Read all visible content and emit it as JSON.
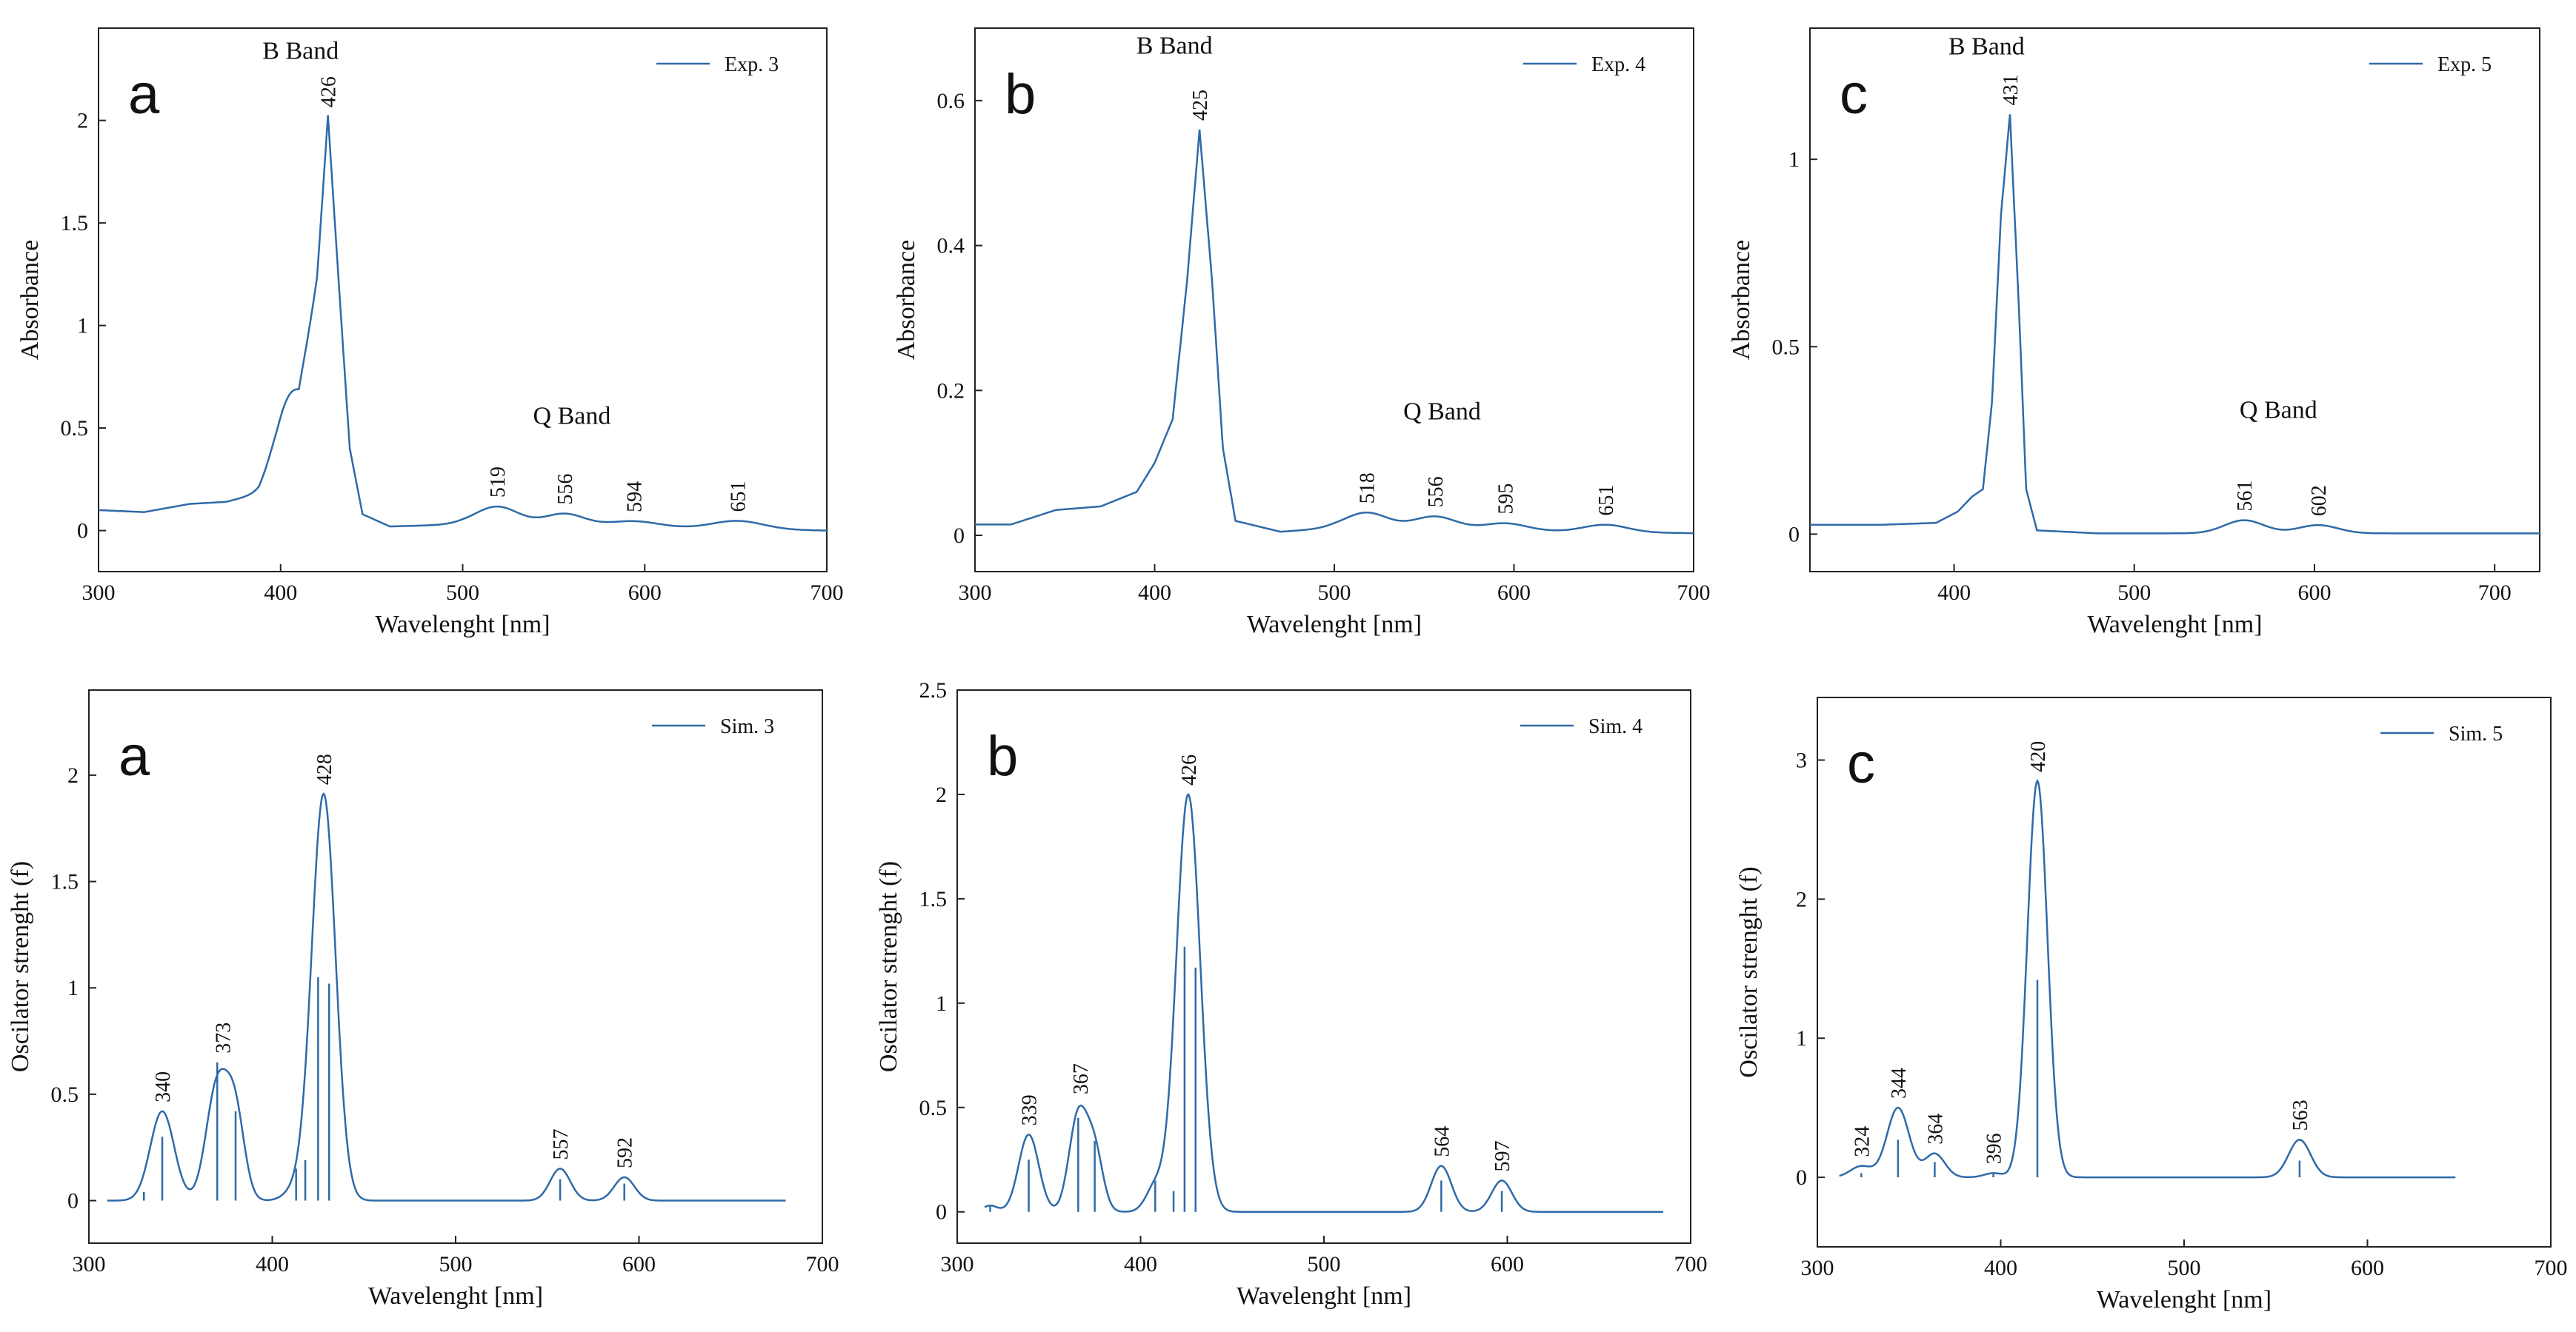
{
  "figure": {
    "series_color": "#2f6aa8"
  },
  "chart_data": [
    {
      "id": "exp3",
      "type": "line",
      "panel_label": "a",
      "xlabel": "Wavelenght [nm]",
      "ylabel": "Absorbance",
      "xlim": [
        300,
        700
      ],
      "ylim": [
        -0.2,
        2.45
      ],
      "xticks": [
        300,
        400,
        500,
        600,
        700
      ],
      "yticks": [
        0,
        0.5,
        1,
        1.5,
        2
      ],
      "legend": "Exp. 3",
      "band_labels": [
        {
          "text": "B Band",
          "x": 411,
          "y": 2.3
        },
        {
          "text": "Q Band",
          "x": 560,
          "y": 0.52
        }
      ],
      "baseline": [
        [
          300,
          0.1
        ],
        [
          325,
          0.09
        ],
        [
          350,
          0.13
        ],
        [
          370,
          0.14
        ],
        [
          388,
          0.18
        ],
        [
          398,
          0.3
        ],
        [
          410,
          0.5
        ],
        [
          420,
          1.2
        ],
        [
          426,
          2.02
        ],
        [
          432,
          1.2
        ],
        [
          438,
          0.4
        ],
        [
          445,
          0.08
        ],
        [
          460,
          0.02
        ],
        [
          500,
          0.03
        ],
        [
          700,
          0.0
        ]
      ],
      "peaks": [
        {
          "x": 404,
          "h": 0.25,
          "w": 8
        },
        {
          "x": 519,
          "h": 0.09,
          "w": 12,
          "label": "519"
        },
        {
          "x": 556,
          "h": 0.06,
          "w": 11,
          "label": "556"
        },
        {
          "x": 594,
          "h": 0.03,
          "w": 14,
          "label": "594"
        },
        {
          "x": 651,
          "h": 0.04,
          "w": 14,
          "label": "651"
        }
      ],
      "peak_labels": [
        {
          "x": 426,
          "y": 2.02,
          "text": "426"
        }
      ],
      "sticks": []
    },
    {
      "id": "exp4",
      "type": "line",
      "panel_label": "b",
      "xlabel": "Wavelenght [nm]",
      "ylabel": "Absorbance",
      "xlim": [
        300,
        700
      ],
      "ylim": [
        -0.05,
        0.7
      ],
      "xticks": [
        300,
        400,
        500,
        600,
        700
      ],
      "yticks": [
        0,
        0.2,
        0.4,
        0.6
      ],
      "legend": "Exp. 4",
      "band_labels": [
        {
          "text": "B Band",
          "x": 411,
          "y": 0.665
        },
        {
          "text": "Q Band",
          "x": 560,
          "y": 0.16
        }
      ],
      "baseline": [
        [
          300,
          0.015
        ],
        [
          320,
          0.015
        ],
        [
          345,
          0.035
        ],
        [
          370,
          0.04
        ],
        [
          390,
          0.06
        ],
        [
          400,
          0.1
        ],
        [
          410,
          0.16
        ],
        [
          418,
          0.35
        ],
        [
          425,
          0.56
        ],
        [
          432,
          0.35
        ],
        [
          438,
          0.12
        ],
        [
          445,
          0.02
        ],
        [
          470,
          0.005
        ],
        [
          500,
          0.01
        ],
        [
          700,
          0.003
        ]
      ],
      "peaks": [
        {
          "x": 518,
          "h": 0.022,
          "w": 12,
          "label": "518"
        },
        {
          "x": 556,
          "h": 0.018,
          "w": 12,
          "label": "556"
        },
        {
          "x": 595,
          "h": 0.01,
          "w": 12,
          "label": "595"
        },
        {
          "x": 651,
          "h": 0.01,
          "w": 12,
          "label": "651"
        }
      ],
      "peak_labels": [
        {
          "x": 425,
          "y": 0.56,
          "text": "425"
        }
      ],
      "sticks": []
    },
    {
      "id": "exp5",
      "type": "line",
      "panel_label": "c",
      "xlabel": "Wavelenght [nm]",
      "ylabel": "Absorbance",
      "xlim": [
        320,
        725
      ],
      "ylim": [
        -0.1,
        1.35
      ],
      "xticks": [
        400,
        500,
        600,
        700
      ],
      "yticks": [
        0,
        0.5,
        1
      ],
      "legend": "Exp. 5",
      "band_labels": [
        {
          "text": "B Band",
          "x": 418,
          "y": 1.28
        },
        {
          "text": "Q Band",
          "x": 580,
          "y": 0.31
        }
      ],
      "baseline": [
        [
          320,
          0.025
        ],
        [
          360,
          0.025
        ],
        [
          390,
          0.03
        ],
        [
          402,
          0.06
        ],
        [
          410,
          0.1
        ],
        [
          416,
          0.12
        ],
        [
          421,
          0.35
        ],
        [
          426,
          0.85
        ],
        [
          431,
          1.12
        ],
        [
          436,
          0.6
        ],
        [
          440,
          0.12
        ],
        [
          446,
          0.01
        ],
        [
          480,
          0.002
        ],
        [
          725,
          0.002
        ]
      ],
      "peaks": [
        {
          "x": 561,
          "h": 0.035,
          "w": 11,
          "label": "561"
        },
        {
          "x": 602,
          "h": 0.022,
          "w": 11,
          "label": "602"
        }
      ],
      "peak_labels": [
        {
          "x": 431,
          "y": 1.12,
          "text": "431"
        }
      ],
      "sticks": []
    },
    {
      "id": "sim3",
      "type": "line",
      "panel_label": "a",
      "xlabel": "Wavelenght [nm]",
      "ylabel": "Oscilator strenght (f)",
      "xlim": [
        300,
        700
      ],
      "ylim": [
        -0.2,
        2.4
      ],
      "xticks": [
        300,
        400,
        500,
        600,
        700
      ],
      "yticks": [
        0,
        0.5,
        1,
        1.5,
        2
      ],
      "legend": "Sim. 3",
      "band_labels": [],
      "baseline": [
        [
          310,
          0.0
        ],
        [
          680,
          0.0
        ]
      ],
      "peaks": [
        {
          "x": 340,
          "h": 0.42,
          "w": 6.5,
          "label": "340"
        },
        {
          "x": 370,
          "h": 0.54,
          "w": 6
        },
        {
          "x": 380,
          "h": 0.38,
          "w": 5
        },
        {
          "x": 373,
          "h": 0.0,
          "w": 5,
          "label": "373",
          "label_y": 0.65
        },
        {
          "x": 413,
          "h": 0.05,
          "w": 6
        },
        {
          "x": 428,
          "h": 1.91,
          "w": 6.5,
          "label": "428"
        },
        {
          "x": 557,
          "h": 0.15,
          "w": 5.5,
          "label": "557"
        },
        {
          "x": 592,
          "h": 0.11,
          "w": 5.5,
          "label": "592"
        }
      ],
      "peak_labels": [],
      "sticks": [
        [
          330,
          0.04
        ],
        [
          340,
          0.3
        ],
        [
          370,
          0.65
        ],
        [
          380,
          0.42
        ],
        [
          413,
          0.15
        ],
        [
          418,
          0.19
        ],
        [
          425,
          1.05
        ],
        [
          431,
          1.02
        ],
        [
          557,
          0.1
        ],
        [
          592,
          0.08
        ]
      ]
    },
    {
      "id": "sim4",
      "type": "line",
      "panel_label": "b",
      "xlabel": "Wavelenght [nm]",
      "ylabel": "Oscilator strenght (f)",
      "xlim": [
        300,
        700
      ],
      "ylim": [
        -0.15,
        2.5
      ],
      "xticks": [
        300,
        400,
        500,
        600,
        700
      ],
      "yticks": [
        0,
        0.5,
        1,
        1.5,
        2,
        2.5
      ],
      "legend": "Sim. 4",
      "band_labels": [],
      "baseline": [
        [
          315,
          0.0
        ],
        [
          685,
          0.0
        ]
      ],
      "peaks": [
        {
          "x": 318,
          "h": 0.03,
          "w": 4
        },
        {
          "x": 339,
          "h": 0.37,
          "w": 5.5,
          "label": "339"
        },
        {
          "x": 366,
          "h": 0.46,
          "w": 5
        },
        {
          "x": 375,
          "h": 0.28,
          "w": 4.5
        },
        {
          "x": 367,
          "h": 0.0,
          "w": 4,
          "label": "367",
          "label_y": 0.52
        },
        {
          "x": 408,
          "h": 0.12,
          "w": 5
        },
        {
          "x": 426,
          "h": 2.0,
          "w": 6.5,
          "label": "426"
        },
        {
          "x": 564,
          "h": 0.22,
          "w": 5.5,
          "label": "564"
        },
        {
          "x": 597,
          "h": 0.15,
          "w": 5.5,
          "label": "597"
        }
      ],
      "peak_labels": [],
      "sticks": [
        [
          318,
          0.03
        ],
        [
          339,
          0.25
        ],
        [
          366,
          0.45
        ],
        [
          375,
          0.34
        ],
        [
          408,
          0.15
        ],
        [
          418,
          0.1
        ],
        [
          424,
          1.27
        ],
        [
          430,
          1.17
        ],
        [
          564,
          0.15
        ],
        [
          597,
          0.1
        ]
      ]
    },
    {
      "id": "sim5",
      "type": "line",
      "panel_label": "c",
      "xlabel": "Wavelenght [nm]",
      "ylabel": "Oscilator strenght (f)",
      "xlim": [
        300,
        700
      ],
      "ylim": [
        -0.5,
        3.45
      ],
      "xticks": [
        300,
        400,
        500,
        600,
        700
      ],
      "yticks": [
        0,
        1,
        2,
        3
      ],
      "legend": "Sim. 5",
      "band_labels": [],
      "baseline": [
        [
          312,
          0.0
        ],
        [
          648,
          0.0
        ]
      ],
      "peaks": [
        {
          "x": 324,
          "h": 0.08,
          "w": 6,
          "label": "324"
        },
        {
          "x": 344,
          "h": 0.5,
          "w": 6,
          "label": "344"
        },
        {
          "x": 364,
          "h": 0.17,
          "w": 5.5,
          "label": "364"
        },
        {
          "x": 396,
          "h": 0.03,
          "w": 5,
          "label": "396"
        },
        {
          "x": 420,
          "h": 2.85,
          "w": 5.5,
          "label": "420"
        },
        {
          "x": 563,
          "h": 0.27,
          "w": 6,
          "label": "563"
        }
      ],
      "peak_labels": [],
      "sticks": [
        [
          324,
          0.03
        ],
        [
          344,
          0.27
        ],
        [
          364,
          0.11
        ],
        [
          396,
          0.03
        ],
        [
          420,
          1.42
        ],
        [
          563,
          0.12
        ]
      ]
    }
  ]
}
